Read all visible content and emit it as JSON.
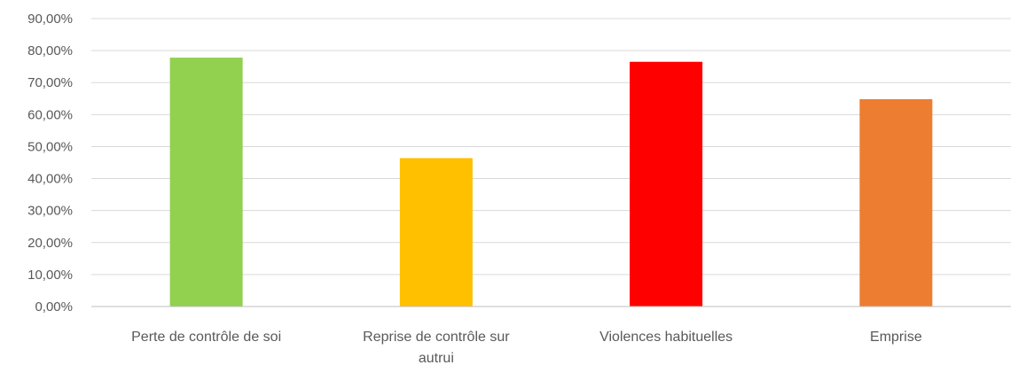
{
  "chart_data": {
    "type": "bar",
    "categories": [
      [
        "Perte de contrôle de soi"
      ],
      [
        "Reprise de contrôle sur",
        "autrui"
      ],
      [
        "Violences habituelles"
      ],
      [
        "Emprise"
      ]
    ],
    "values": [
      77.8,
      46.4,
      76.5,
      64.8
    ],
    "colors": [
      "#92d050",
      "#ffc000",
      "#ff0000",
      "#ed7d31"
    ],
    "ylim": [
      0,
      90
    ],
    "yticks": [
      0,
      10,
      20,
      30,
      40,
      50,
      60,
      70,
      80,
      90
    ],
    "ytick_labels": [
      "0,00%",
      "10,00%",
      "20,00%",
      "30,00%",
      "40,00%",
      "50,00%",
      "60,00%",
      "70,00%",
      "80,00%",
      "90,00%"
    ],
    "grid": true,
    "legend": "none",
    "title": "",
    "xlabel": "",
    "ylabel": ""
  }
}
